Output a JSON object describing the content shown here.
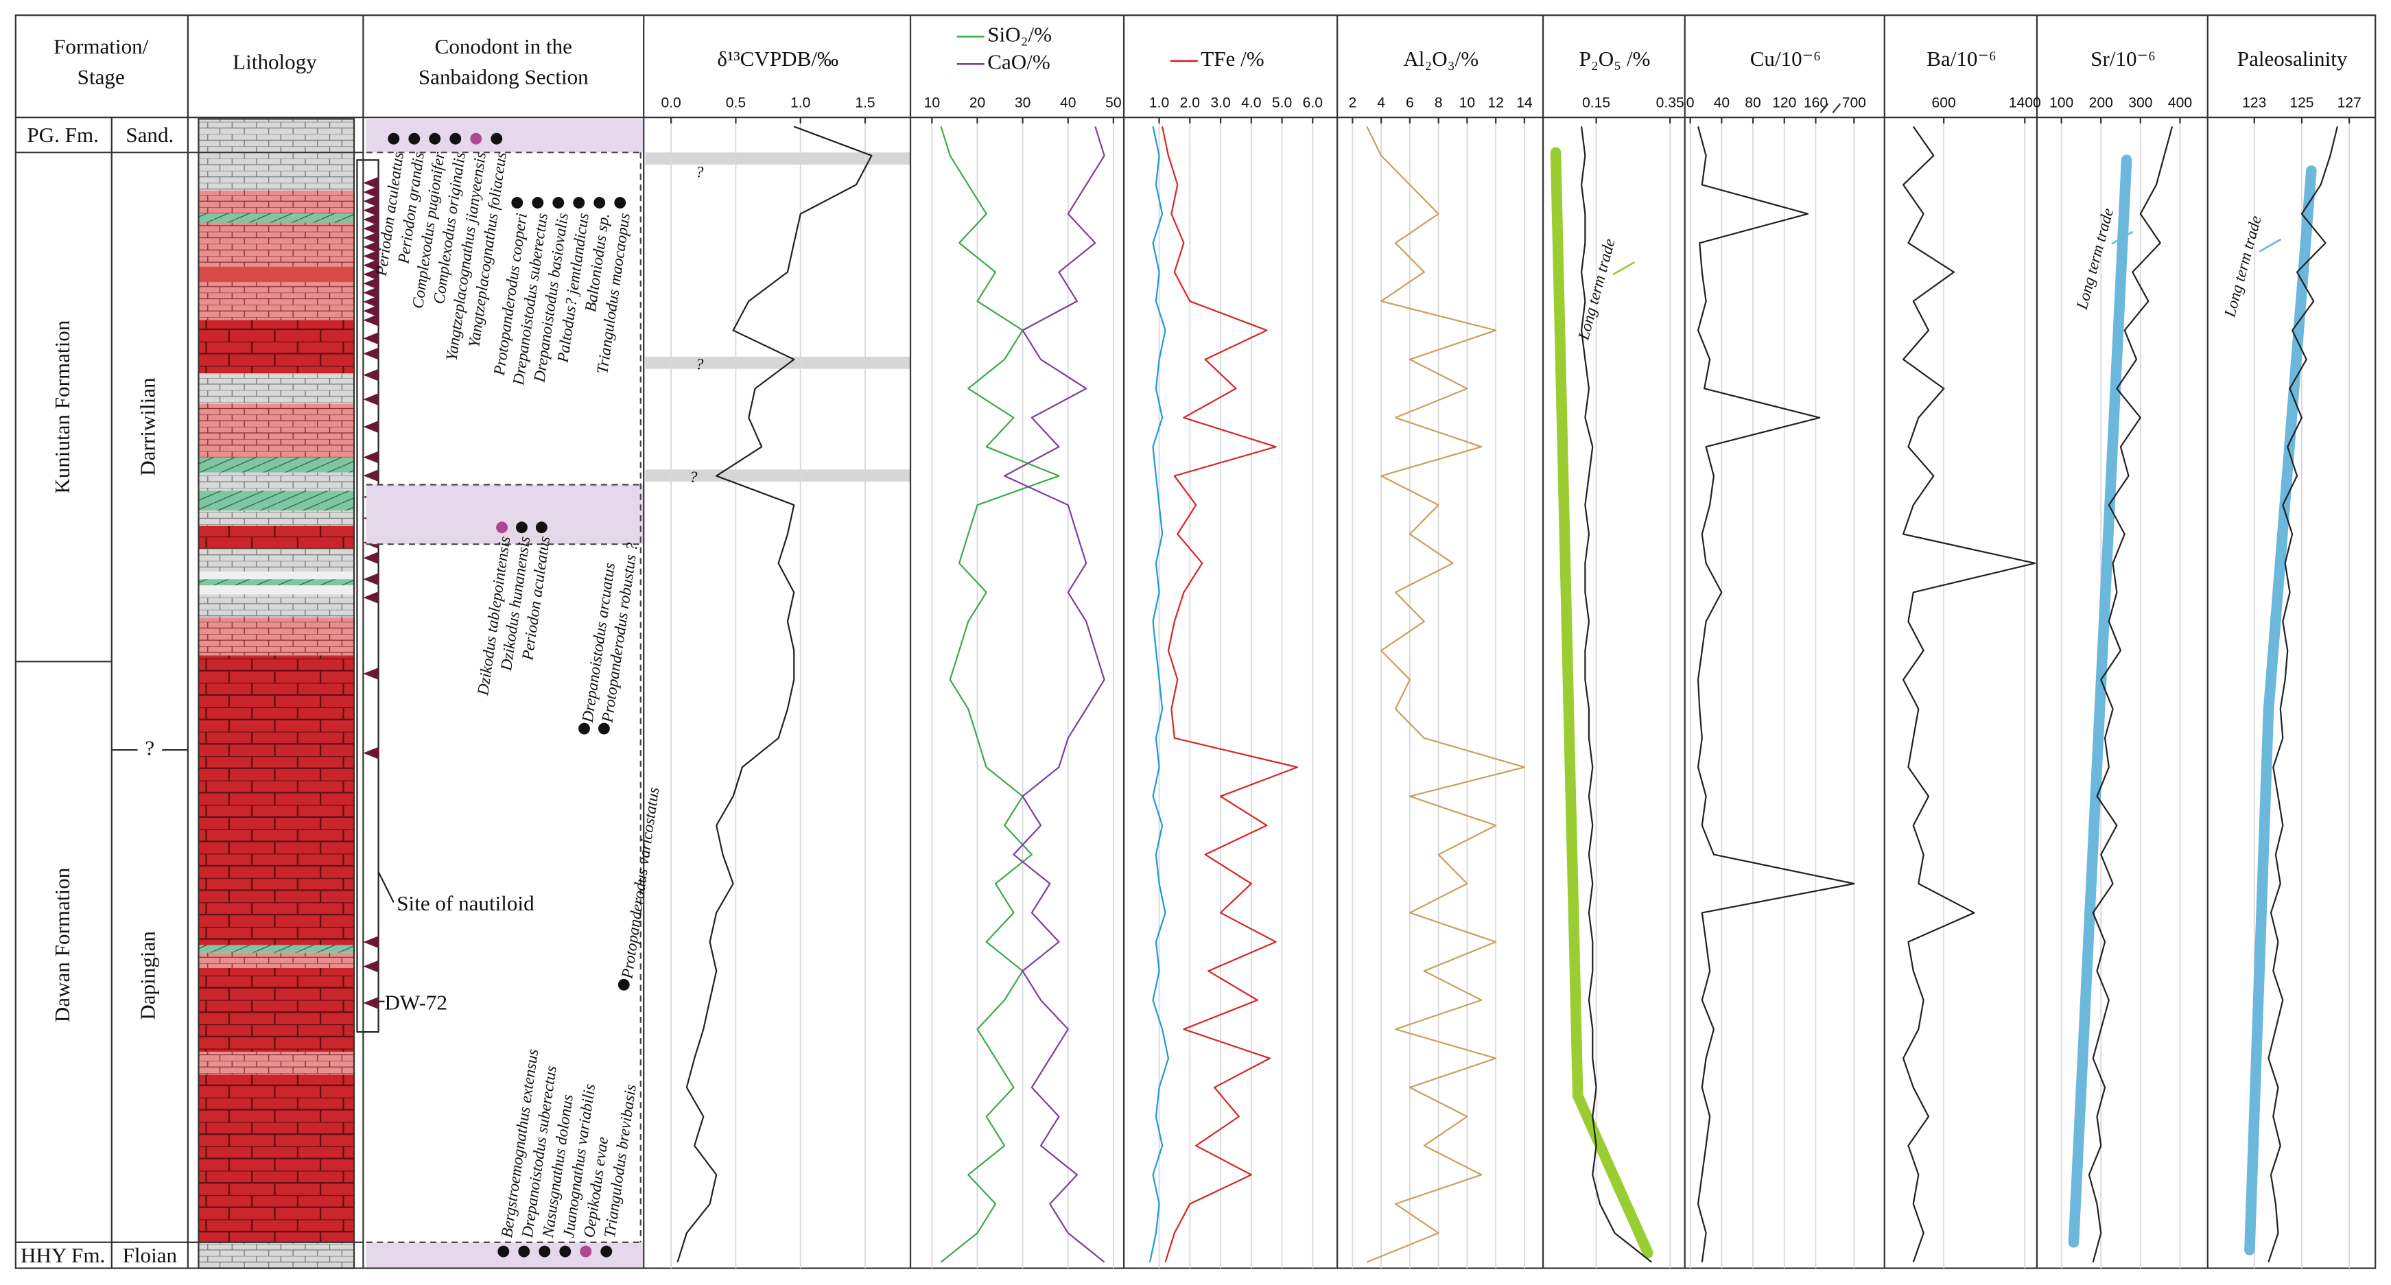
{
  "header": {
    "formation_stage": [
      "Formation/",
      "Stage"
    ],
    "lithology": "Lithology",
    "conodont": [
      "Conodont in the",
      "Sanbaidong Section"
    ]
  },
  "formations": {
    "pg_fm": "PG. Fm.",
    "sand": "Sand.",
    "kuniutan": "Kuniutan Formation",
    "darriwilian": "Darriwilian",
    "boundary": "?",
    "dawan": "Dawan Formation",
    "dapingian": "Dapingian",
    "hhy_fm": "HHY Fm.",
    "floian": "Floian"
  },
  "lithology_notes": {
    "nautiloid": "Site of nautiloid",
    "sample": "DW-72"
  },
  "conodonts": {
    "upper": [
      {
        "name": "Periodon aculeatus"
      },
      {
        "name": "Periodon grandis"
      },
      {
        "name": "Complexodus pugionifer"
      },
      {
        "name": "Complexodus originalis"
      },
      {
        "name": "Yangtzeplacognathus jianyeensis",
        "color": "#b0488f"
      },
      {
        "name": "Yangtzeplacognathus foliaceus"
      },
      {
        "name": "Protopanderodus cooperi"
      },
      {
        "name": "Drepanoistodus suberectus"
      },
      {
        "name": "Drepanoistodus basiovalis"
      },
      {
        "name": "Paltodus? jemtlandicus"
      },
      {
        "name": "Baltoniodus sp."
      },
      {
        "name": "Triangulodus maocaopus"
      }
    ],
    "middle": [
      {
        "name": "Dzikodus tablepointensis",
        "color": "#b0488f"
      },
      {
        "name": "Dzikodus hunanensis"
      },
      {
        "name": "Periodon aculeatus"
      },
      {
        "name": "Drepanoistodus arcuatus"
      },
      {
        "name": "Protopanderodus robustus ?"
      },
      {
        "name": "Protopanderodus varicostatus"
      }
    ],
    "lower": [
      {
        "name": "Bergstroemognathus extensus"
      },
      {
        "name": "Drepanoistodus suberectus"
      },
      {
        "name": "Nasusgnathus dolonus"
      },
      {
        "name": "Juanognathus variabilis"
      },
      {
        "name": "Oepikodus evae",
        "color": "#b0488f"
      },
      {
        "name": "Triangulodus brevibasis"
      }
    ]
  },
  "chart_data": [
    {
      "type": "line",
      "title": "δ¹³CVPDB/‰",
      "xlim": [
        -0.2,
        1.85
      ],
      "xticks": [
        {
          "value": 0,
          "label": "0.0"
        },
        0.5,
        {
          "value": 1,
          "label": "1.0"
        },
        1.5
      ],
      "grid": true,
      "annotations": [
        "?",
        "?",
        "?"
      ],
      "series": [
        {
          "color": "#222222",
          "values": [
            0.95,
            1.55,
            1.43,
            1.0,
            0.95,
            0.9,
            0.6,
            0.48,
            0.95,
            0.65,
            0.6,
            0.7,
            0.35,
            0.95,
            0.9,
            0.83,
            0.95,
            0.9,
            0.95,
            0.95,
            0.9,
            0.83,
            0.55,
            0.48,
            0.35,
            0.4,
            0.48,
            0.35,
            0.3,
            0.35,
            0.3,
            0.25,
            0.18,
            0.12,
            0.25,
            0.18,
            0.35,
            0.3,
            0.12,
            0.05
          ]
        }
      ]
    },
    {
      "type": "line",
      "xlim": [
        5.6,
        52.3
      ],
      "xticks": [
        10,
        20,
        30,
        40,
        50
      ],
      "grid": true,
      "series": [
        {
          "name": "SiO₂/%",
          "color": "#3daa4a",
          "values": [
            12,
            14,
            18,
            22,
            16,
            24,
            20,
            30,
            26,
            18,
            28,
            22,
            38,
            20,
            18,
            16,
            22,
            18,
            16,
            14,
            18,
            20,
            22,
            30,
            26,
            32,
            24,
            28,
            22,
            30,
            26,
            20,
            24,
            28,
            22,
            26,
            18,
            24,
            20,
            12
          ]
        },
        {
          "name": "CaO/%",
          "color": "#7b3fa0",
          "values": [
            46,
            48,
            44,
            40,
            46,
            38,
            42,
            30,
            34,
            44,
            32,
            38,
            26,
            40,
            42,
            44,
            40,
            44,
            46,
            48,
            44,
            40,
            38,
            30,
            34,
            28,
            36,
            32,
            38,
            30,
            34,
            40,
            36,
            32,
            38,
            34,
            42,
            36,
            40,
            48
          ]
        }
      ]
    },
    {
      "type": "line",
      "xlim": [
        -0.1,
        6.8
      ],
      "xticks": [
        {
          "value": 1,
          "label": "1.0"
        },
        {
          "value": 2,
          "label": "2.0"
        },
        {
          "value": 3,
          "label": "3.0"
        },
        {
          "value": 4,
          "label": "4.0"
        },
        {
          "value": 5,
          "label": "5.0"
        },
        {
          "value": 6,
          "label": "6.0"
        }
      ],
      "grid": true,
      "series": [
        {
          "name": "TFe /%",
          "color": "#d62728",
          "values": [
            1.1,
            1.3,
            1.6,
            1.4,
            1.8,
            1.5,
            2.0,
            4.5,
            2.5,
            3.5,
            1.8,
            4.8,
            1.5,
            2.2,
            1.6,
            2.4,
            1.8,
            1.5,
            1.3,
            1.6,
            1.4,
            1.5,
            5.5,
            3.0,
            4.5,
            2.5,
            4.0,
            3.0,
            4.8,
            2.6,
            4.2,
            1.8,
            4.6,
            2.8,
            3.6,
            2.2,
            4.0,
            2.0,
            1.5,
            1.2
          ]
        },
        {
          "color": "#1f9bd1",
          "values": [
            0.8,
            1.0,
            0.9,
            1.1,
            0.8,
            1.0,
            0.9,
            1.2,
            1.0,
            0.9,
            1.1,
            0.8,
            0.9,
            1.0,
            1.1,
            0.9,
            1.0,
            0.8,
            0.9,
            1.0,
            1.1,
            0.9,
            1.0,
            0.8,
            1.1,
            0.9,
            1.0,
            1.2,
            0.9,
            1.0,
            0.8,
            1.1,
            1.3,
            1.0,
            0.9,
            1.1,
            0.8,
            1.0,
            0.9,
            0.7
          ]
        }
      ]
    },
    {
      "type": "line",
      "title": "Al₂O₃/%",
      "xlim": [
        1.04,
        15.3
      ],
      "xticks": [
        2,
        4,
        6,
        8,
        10,
        12,
        14
      ],
      "grid": true,
      "series": [
        {
          "color": "#c9a15c",
          "values": [
            3,
            4,
            6,
            8,
            5,
            7,
            4,
            12,
            6,
            10,
            5,
            11,
            4,
            8,
            6,
            9,
            5,
            7,
            4,
            6,
            5,
            7,
            14,
            6,
            12,
            8,
            10,
            6,
            12,
            7,
            11,
            5,
            12,
            6,
            10,
            7,
            11,
            5,
            8,
            3
          ]
        }
      ]
    },
    {
      "type": "line",
      "title": "P₂O₅ /%",
      "xlim": [
        0.01,
        0.39
      ],
      "xticks": [
        0.15,
        0.35
      ],
      "grid": true,
      "annotation": "Long term trade",
      "trend": {
        "color": "#9acd32",
        "values": [
          0.04,
          0.05,
          0.06,
          0.07,
          0.08,
          0.09,
          0.1,
          0.29
        ]
      },
      "series": [
        {
          "color": "#222222",
          "values": [
            0.11,
            0.12,
            0.11,
            0.12,
            0.12,
            0.11,
            0.12,
            0.11,
            0.12,
            0.13,
            0.12,
            0.14,
            0.13,
            0.12,
            0.13,
            0.12,
            0.12,
            0.13,
            0.12,
            0.12,
            0.13,
            0.13,
            0.14,
            0.13,
            0.14,
            0.13,
            0.14,
            0.13,
            0.14,
            0.14,
            0.13,
            0.14,
            0.14,
            0.15,
            0.14,
            0.15,
            0.14,
            0.16,
            0.2,
            0.3
          ]
        }
      ]
    },
    {
      "type": "line",
      "title": "Cu/10⁻⁶",
      "xlim": [
        -5,
        720
      ],
      "xbreak": [
        170,
        690
      ],
      "xticks": [
        0,
        40,
        80,
        120,
        160,
        700
      ],
      "grid": true,
      "series": [
        {
          "color": "#222222",
          "values": [
            10,
            20,
            15,
            150,
            12,
            15,
            20,
            10,
            25,
            18,
            165,
            20,
            30,
            25,
            15,
            20,
            40,
            20,
            15,
            10,
            12,
            15,
            10,
            20,
            15,
            30,
            700,
            15,
            20,
            25,
            15,
            30,
            20,
            15,
            25,
            20,
            15,
            10,
            20,
            15
          ]
        }
      ]
    },
    {
      "type": "line",
      "title": "Ba/10⁻⁶",
      "xlim": [
        30,
        1520
      ],
      "xticks": [
        600,
        1400
      ],
      "grid": true,
      "series": [
        {
          "color": "#222222",
          "values": [
            300,
            500,
            200,
            400,
            250,
            700,
            300,
            450,
            200,
            600,
            350,
            250,
            500,
            300,
            200,
            1500,
            300,
            250,
            400,
            200,
            350,
            300,
            250,
            450,
            300,
            400,
            350,
            900,
            250,
            300,
            400,
            350,
            200,
            300,
            450,
            250,
            350,
            300,
            400,
            300
          ]
        }
      ]
    },
    {
      "type": "line",
      "title": "Sr/10⁻⁶",
      "xlim": [
        42,
        470
      ],
      "xticks": [
        100,
        200,
        300,
        400
      ],
      "grid": true,
      "annotation": "Long term trade",
      "trend": {
        "color": "#6bb8dc",
        "values": [
          265,
          131
        ]
      },
      "series": [
        {
          "color": "#222222",
          "values": [
            380,
            360,
            340,
            300,
            350,
            280,
            320,
            260,
            290,
            240,
            300,
            250,
            270,
            220,
            260,
            230,
            240,
            220,
            250,
            200,
            230,
            210,
            220,
            190,
            240,
            200,
            230,
            180,
            210,
            190,
            220,
            200,
            180,
            210,
            190,
            200,
            170,
            190,
            200,
            180
          ]
        }
      ]
    },
    {
      "type": "line",
      "title": "Paleosalinity",
      "xlim": [
        121.1,
        128.1
      ],
      "xticks": [
        123,
        125,
        127
      ],
      "grid": true,
      "annotation": "Long term trade",
      "trend": {
        "color": "#6bb8dc",
        "values": [
          125.4,
          123.6,
          122.8
        ]
      },
      "series": [
        {
          "color": "#222222",
          "values": [
            126.5,
            126.2,
            125.8,
            125.0,
            126.0,
            124.8,
            125.5,
            124.6,
            125.2,
            124.5,
            125.0,
            124.4,
            124.8,
            124.2,
            124.6,
            124.3,
            124.5,
            124.2,
            124.4,
            124.3,
            124.1,
            124.2,
            123.8,
            124.0,
            124.2,
            123.9,
            124.1,
            123.7,
            124.0,
            123.8,
            124.2,
            123.9,
            123.6,
            124.0,
            123.8,
            124.1,
            123.7,
            123.9,
            124.0,
            123.6
          ]
        }
      ]
    }
  ]
}
